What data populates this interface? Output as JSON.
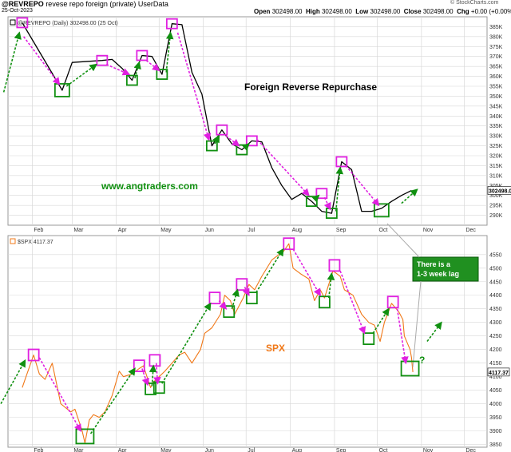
{
  "header": {
    "symbol": "@REVREPO",
    "description": "revese repo foreign (private)",
    "source": "UserData",
    "date": "25-Oct-2023",
    "open_label": "Open",
    "open_value": "302498.00",
    "high_label": "High",
    "high_value": "302498.00",
    "low_label": "Low",
    "low_value": "302498.00",
    "close_label": "Close",
    "close_value": "302498.00",
    "chg_label": "Chg",
    "chg_value": "+0.00 (+0.00%)",
    "copyright": "© StockCharts.com"
  },
  "colors": {
    "revrepo_line": "#000000",
    "spx_line": "#f07818",
    "peak_box": "#e020e0",
    "trough_box": "#109010",
    "down_arrow": "#e020e0",
    "up_arrow": "#109010",
    "grid": "#d8d8d8",
    "annotation_blue": "#000000",
    "url_green": "#109010",
    "spx_label": "#f07818",
    "callout_bg": "#209020"
  },
  "chart_data": [
    {
      "type": "line",
      "legend": "@REVREPO (Daily) 302498.00 (25 Oct)",
      "title": "Foreign Reverse Repurchase",
      "watermark": "www.angtraders.com",
      "months": [
        "Feb",
        "Mar",
        "Apr",
        "May",
        "Jun",
        "Jul",
        "Aug",
        "Sep",
        "Oct",
        "Nov",
        "Dec"
      ],
      "ylim": [
        285000,
        390000
      ],
      "yticks": [
        290000,
        295000,
        300000,
        305000,
        310000,
        315000,
        320000,
        325000,
        330000,
        335000,
        340000,
        345000,
        350000,
        355000,
        360000,
        365000,
        370000,
        375000,
        380000,
        385000
      ],
      "ytick_labels": [
        "290K",
        "295K",
        "300K",
        "305K",
        "310K",
        "315K",
        "320K",
        "325K",
        "330K",
        "335K",
        "340K",
        "345K",
        "350K",
        "355K",
        "360K",
        "365K",
        "370K",
        "375K",
        "380K",
        "385K"
      ],
      "last_value_label": "302498.0",
      "x": [
        "2023-01-25",
        "2023-02-22",
        "2023-03-01",
        "2023-03-22",
        "2023-03-29",
        "2023-04-05",
        "2023-04-12",
        "2023-04-19",
        "2023-04-26",
        "2023-05-03",
        "2023-05-10",
        "2023-05-17",
        "2023-05-24",
        "2023-05-31",
        "2023-06-07",
        "2023-06-14",
        "2023-06-21",
        "2023-06-28",
        "2023-07-05",
        "2023-07-12",
        "2023-07-19",
        "2023-07-26",
        "2023-08-02",
        "2023-08-09",
        "2023-08-16",
        "2023-08-23",
        "2023-08-30",
        "2023-09-06",
        "2023-09-13",
        "2023-09-20",
        "2023-09-27",
        "2023-10-04",
        "2023-10-11",
        "2023-10-18",
        "2023-10-25"
      ],
      "y": [
        387000,
        353000,
        367000,
        368000,
        368500,
        364000,
        358000,
        370500,
        370000,
        361000,
        386500,
        386000,
        362000,
        351000,
        325000,
        333000,
        326000,
        323000,
        327500,
        327000,
        314000,
        305000,
        298000,
        301000,
        297000,
        292000,
        291000,
        317000,
        313000,
        292000,
        292000,
        293500,
        297000,
        300000,
        302498
      ]
    },
    {
      "type": "line",
      "legend": "$SPX 4117.37",
      "title": "SPX",
      "months": [
        "Feb",
        "Mar",
        "Apr",
        "May",
        "Jun",
        "Jul",
        "Aug",
        "Sep",
        "Oct",
        "Nov",
        "Dec"
      ],
      "ylim": [
        3840,
        4620
      ],
      "yticks": [
        3850,
        3900,
        3950,
        4000,
        4050,
        4100,
        4150,
        4200,
        4250,
        4300,
        4350,
        4400,
        4450,
        4500,
        4550
      ],
      "last_value_label": "4117.37",
      "x": [
        "2023-01-25",
        "2023-01-27",
        "2023-02-02",
        "2023-02-06",
        "2023-02-10",
        "2023-02-15",
        "2023-02-21",
        "2023-02-28",
        "2023-03-03",
        "2023-03-08",
        "2023-03-10",
        "2023-03-13",
        "2023-03-16",
        "2023-03-20",
        "2023-03-24",
        "2023-03-29",
        "2023-04-03",
        "2023-04-06",
        "2023-04-12",
        "2023-04-17",
        "2023-04-20",
        "2023-04-25",
        "2023-04-27",
        "2023-05-01",
        "2023-05-05",
        "2023-05-10",
        "2023-05-15",
        "2023-05-19",
        "2023-05-24",
        "2023-05-30",
        "2023-06-02",
        "2023-06-07",
        "2023-06-13",
        "2023-06-16",
        "2023-06-20",
        "2023-06-23",
        "2023-06-29",
        "2023-07-03",
        "2023-07-07",
        "2023-07-12",
        "2023-07-19",
        "2023-07-24",
        "2023-07-27",
        "2023-07-31",
        "2023-08-03",
        "2023-08-08",
        "2023-08-14",
        "2023-08-18",
        "2023-08-22",
        "2023-08-25",
        "2023-08-31",
        "2023-09-05",
        "2023-09-08",
        "2023-09-14",
        "2023-09-20",
        "2023-09-25",
        "2023-09-29",
        "2023-10-03",
        "2023-10-06",
        "2023-10-11",
        "2023-10-16",
        "2023-10-19",
        "2023-10-20",
        "2023-10-24",
        "2023-10-25",
        "2023-10-26"
      ],
      "y": [
        4060,
        4090,
        4180,
        4110,
        4090,
        4150,
        4000,
        3970,
        3980,
        3900,
        3855,
        3940,
        3960,
        3950,
        3970,
        4030,
        4120,
        4100,
        4110,
        4130,
        4140,
        4060,
        4080,
        4100,
        4120,
        4150,
        4180,
        4190,
        4150,
        4200,
        4260,
        4280,
        4330,
        4400,
        4380,
        4330,
        4390,
        4440,
        4420,
        4470,
        4530,
        4550,
        4560,
        4590,
        4500,
        4480,
        4460,
        4380,
        4420,
        4390,
        4490,
        4470,
        4420,
        4400,
        4330,
        4300,
        4290,
        4230,
        4300,
        4370,
        4340,
        4310,
        4250,
        4200,
        4170,
        4117
      ]
    }
  ],
  "annotations": {
    "callout": "There is a 1-3 week lag",
    "question_mark": "?"
  }
}
